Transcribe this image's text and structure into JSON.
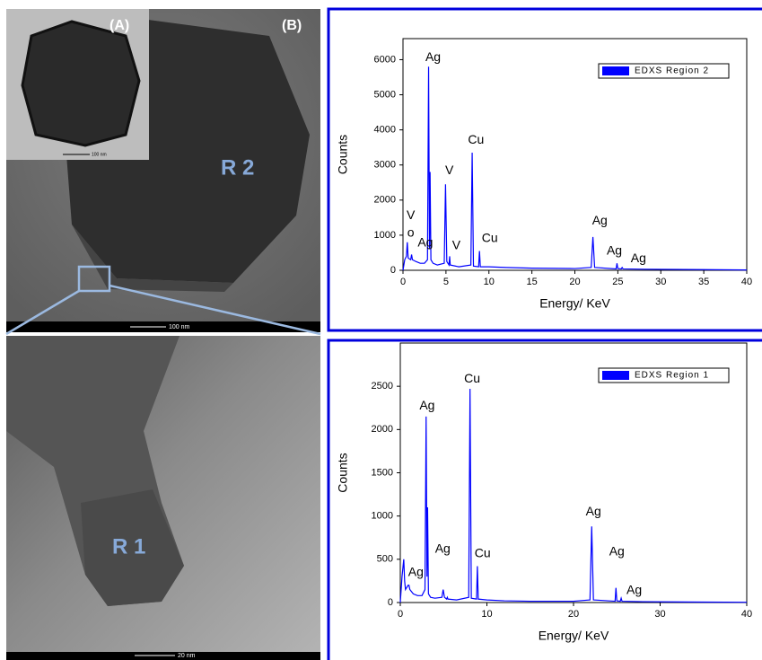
{
  "images": {
    "inset_label": "(A)",
    "main_label": "(B)",
    "region_top": "R 2",
    "scale_inset": "100 nm",
    "scale_top": "100 nm",
    "region_bottom": "R 1",
    "scale_bottom": "20 nm"
  },
  "chart_data": [
    {
      "type": "line",
      "xlabel": "Energy/ KeV",
      "ylabel": "Counts",
      "xlim": [
        0,
        40
      ],
      "ylim": [
        0,
        6600
      ],
      "xticks": [
        0,
        5,
        10,
        15,
        20,
        25,
        30,
        35,
        40
      ],
      "yticks": [
        0,
        1000,
        2000,
        3000,
        4000,
        5000,
        6000
      ],
      "legend": "upper right",
      "series": [
        {
          "name": "EDXS Region 2",
          "color": "#0000ff",
          "x": [
            0,
            0.2,
            0.4,
            0.5,
            0.6,
            0.9,
            1.0,
            1.1,
            1.5,
            2.0,
            2.5,
            2.85,
            2.98,
            3.08,
            3.15,
            3.25,
            3.5,
            4.0,
            4.8,
            4.95,
            5.1,
            5.35,
            5.43,
            5.5,
            6.5,
            7.9,
            8.05,
            8.2,
            8.8,
            8.9,
            9.0,
            10,
            12,
            15,
            20,
            21.9,
            22.1,
            22.3,
            24.8,
            24.9,
            25.0,
            25.4,
            25.5,
            25.6,
            28,
            35,
            40
          ],
          "values": [
            0,
            300,
            400,
            800,
            350,
            300,
            450,
            300,
            250,
            200,
            200,
            300,
            5800,
            600,
            2800,
            300,
            200,
            150,
            200,
            2450,
            250,
            150,
            400,
            150,
            100,
            150,
            3350,
            120,
            100,
            550,
            100,
            100,
            80,
            60,
            50,
            80,
            950,
            80,
            40,
            200,
            50,
            40,
            80,
            40,
            30,
            20,
            10
          ]
        }
      ],
      "annotations": [
        {
          "text": "Ag",
          "x": 3.5,
          "y": 6050
        },
        {
          "text": "Cu",
          "x": 8.5,
          "y": 3700
        },
        {
          "text": "V",
          "x": 5.4,
          "y": 2830
        },
        {
          "text": "V",
          "x": 0.9,
          "y": 1550
        },
        {
          "text": "o",
          "x": 0.9,
          "y": 1050
        },
        {
          "text": "Ag",
          "x": 2.6,
          "y": 770
        },
        {
          "text": "V",
          "x": 6.2,
          "y": 700
        },
        {
          "text": "Cu",
          "x": 10.1,
          "y": 900
        },
        {
          "text": "Ag",
          "x": 22.9,
          "y": 1400
        },
        {
          "text": "Ag",
          "x": 24.6,
          "y": 540
        },
        {
          "text": "Ag",
          "x": 27.4,
          "y": 330
        }
      ]
    },
    {
      "type": "line",
      "xlabel": "Energy/ KeV",
      "ylabel": "Counts",
      "xlim": [
        0,
        40
      ],
      "ylim": [
        0,
        3000
      ],
      "xticks": [
        0,
        10,
        20,
        30,
        40
      ],
      "yticks": [
        0,
        500,
        1000,
        1500,
        2000,
        2500
      ],
      "legend": "upper right",
      "series": [
        {
          "name": "EDXS Region 1",
          "color": "#0000ff",
          "x": [
            0,
            0.2,
            0.4,
            0.5,
            0.6,
            0.9,
            1.0,
            1.1,
            1.5,
            2.0,
            2.5,
            2.85,
            2.98,
            3.08,
            3.15,
            3.25,
            3.5,
            4.0,
            4.8,
            4.95,
            5.1,
            5.35,
            5.43,
            5.5,
            6.5,
            7.9,
            8.05,
            8.2,
            8.8,
            8.9,
            9.0,
            10,
            12,
            15,
            20,
            21.9,
            22.1,
            22.3,
            24.8,
            24.9,
            25.0,
            25.4,
            25.5,
            25.6,
            28,
            35,
            40
          ],
          "values": [
            0,
            300,
            500,
            250,
            150,
            200,
            200,
            150,
            100,
            80,
            80,
            150,
            2150,
            300,
            1100,
            100,
            60,
            50,
            60,
            150,
            60,
            40,
            60,
            40,
            30,
            60,
            2470,
            50,
            40,
            420,
            40,
            30,
            20,
            15,
            15,
            30,
            880,
            30,
            15,
            170,
            20,
            15,
            50,
            15,
            10,
            5,
            3
          ]
        }
      ],
      "annotations": [
        {
          "text": "Cu",
          "x": 8.3,
          "y": 2580
        },
        {
          "text": "Ag",
          "x": 3.1,
          "y": 2270
        },
        {
          "text": "Ag",
          "x": 1.8,
          "y": 345
        },
        {
          "text": "Ag",
          "x": 4.9,
          "y": 617
        },
        {
          "text": "Cu",
          "x": 9.5,
          "y": 565
        },
        {
          "text": "Ag",
          "x": 22.3,
          "y": 1046
        },
        {
          "text": "Ag",
          "x": 25,
          "y": 585
        },
        {
          "text": "Ag",
          "x": 27,
          "y": 136
        }
      ]
    }
  ]
}
